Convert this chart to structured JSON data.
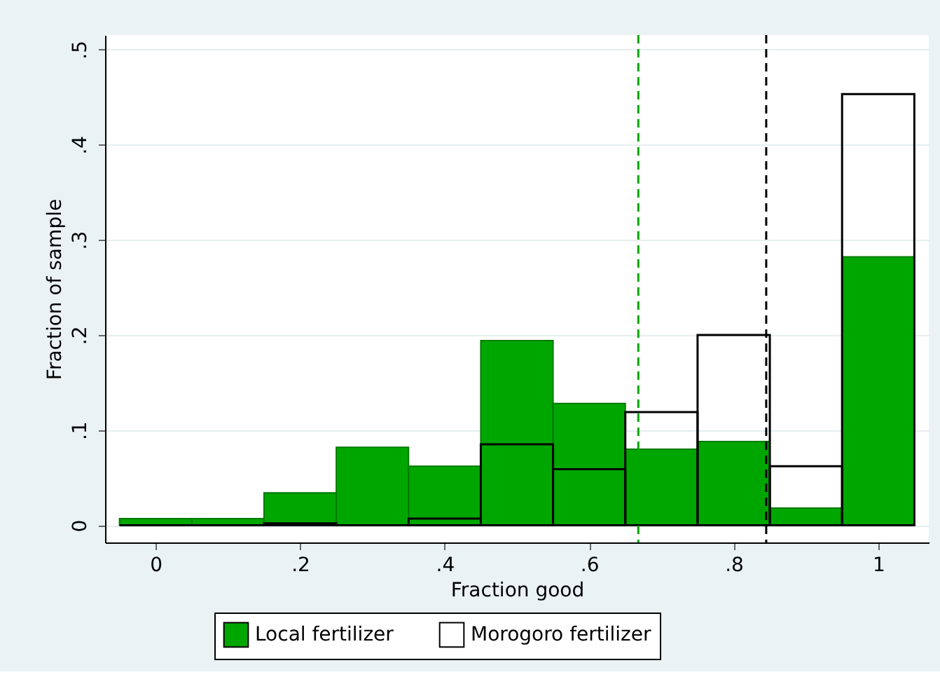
{
  "chart_data": {
    "type": "histogram",
    "xlabel": "Fraction good",
    "ylabel": "Fraction of sample",
    "bins": [
      -0.05,
      0.05,
      0.15,
      0.25,
      0.35,
      0.45,
      0.55,
      0.65,
      0.75,
      0.85,
      0.95,
      1.05
    ],
    "series": [
      {
        "name": "Local fertilizer",
        "color": "#00a600",
        "values": [
          0.007,
          0.007,
          0.034,
          0.082,
          0.062,
          0.194,
          0.128,
          0.08,
          0.088,
          0.018,
          0.282
        ]
      },
      {
        "name": "Morogoro fertilizer",
        "color": "#000000",
        "values": [
          0,
          0,
          0.002,
          0,
          0.007,
          0.085,
          0.059,
          0.119,
          0.2,
          0.062,
          0.453
        ]
      }
    ],
    "xlim": [
      -0.07,
      1.07
    ],
    "ylim": [
      -0.018,
      0.515
    ],
    "xticks": [
      0,
      {
        "value": 0.2,
        "label": ".2"
      },
      {
        "value": 0.4,
        "label": ".4"
      },
      {
        "value": 0.6,
        "label": ".6"
      },
      {
        "value": 0.8,
        "label": ".8"
      },
      1
    ],
    "yticks": [
      0,
      {
        "value": 0.1,
        "label": ".1"
      },
      {
        "value": 0.2,
        "label": ".2"
      },
      {
        "value": 0.3,
        "label": ".3"
      },
      {
        "value": 0.4,
        "label": ".4"
      },
      {
        "value": 0.5,
        "label": ".5"
      }
    ],
    "ref_lines": [
      {
        "axis": "x",
        "value": 0.668,
        "color": "#00a600",
        "line_style": "dashed"
      },
      {
        "axis": "x",
        "value": 0.845,
        "color": "#000000",
        "line_style": "dashed"
      }
    ],
    "grid": "y",
    "legend": "bottom"
  }
}
